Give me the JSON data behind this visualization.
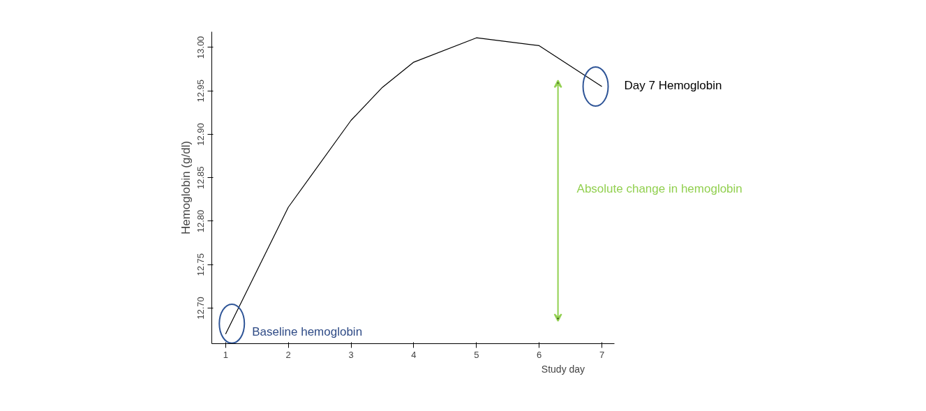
{
  "chart_data": {
    "type": "line",
    "xlabel": "Study day",
    "ylabel": "Hemoglobin (g/dl)",
    "x": [
      1,
      2,
      3,
      3.5,
      4,
      5,
      6,
      7
    ],
    "series": [
      {
        "color": "#000000",
        "values": [
          12.67,
          12.816,
          12.916,
          12.954,
          12.983,
          13.011,
          13.002,
          12.955
        ]
      }
    ],
    "xlim": [
      0.78,
      7.2
    ],
    "xticks": [
      1,
      2,
      3,
      4,
      5,
      6,
      7
    ],
    "ylim": [
      12.659,
      13.018
    ],
    "yticks": [
      {
        "value": 12.7,
        "label": "12.70"
      },
      {
        "value": 12.75,
        "label": "12.75"
      },
      {
        "value": 12.8,
        "label": "12.80"
      },
      {
        "value": 12.85,
        "label": "12.85"
      },
      {
        "value": 12.9,
        "label": "12.90"
      },
      {
        "value": 12.95,
        "label": "12.95"
      },
      {
        "value": 13.0,
        "label": "13.00"
      }
    ],
    "grid": false,
    "marker": "none",
    "line_style": "solid",
    "annotations": [
      {
        "text": "Baseline hemoglobin",
        "x": 1,
        "y": 12.67
      },
      {
        "text": "Day 7 Hemoglobin",
        "x": 7,
        "y": 12.955
      },
      "Absolute change in hemoglobin"
    ]
  }
}
